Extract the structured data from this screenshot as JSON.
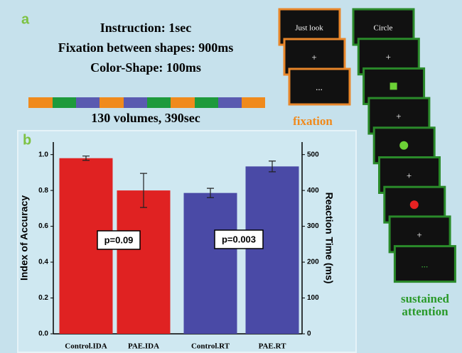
{
  "figure": {
    "panel_a": "a",
    "panel_b": "b",
    "instructions": [
      "Instruction: 1sec",
      "Fixation between shapes: 900ms",
      "Color-Shape: 100ms"
    ],
    "timeline_label": "130 volumes, 390sec",
    "fixation_texts": [
      "Just look",
      "+",
      "..."
    ],
    "fixation_label": "fixation",
    "attention_texts": [
      "Circle",
      "+",
      "+",
      "+",
      "+",
      "..."
    ],
    "attention_label": [
      "sustained",
      "attention"
    ]
  },
  "chart_data": {
    "type": "bar",
    "categories": [
      "Control.IDA",
      "PAE.IDA",
      "Control.RT",
      "PAE.RT"
    ],
    "ylabel": "Index of Accuracy",
    "y2label": "Reaction Time (ms)",
    "ylim": [
      0,
      1.07
    ],
    "yticks": [
      {
        "value": 0,
        "label": "0.0"
      },
      0.2,
      0.4,
      0.6,
      0.8,
      {
        "value": 1,
        "label": "1.0"
      }
    ],
    "y2lim": [
      0,
      535
    ],
    "y2ticks": [
      0,
      100,
      200,
      300,
      400,
      500
    ],
    "series": [
      {
        "color": "#e02222",
        "values": [
          0.98,
          0.8,
          null,
          null
        ],
        "errors": [
          0.012,
          0.095,
          null,
          null
        ]
      },
      {
        "color": "#4a4aa6",
        "axis": "y2",
        "values": [
          null,
          null,
          393,
          467
        ],
        "errors": [
          null,
          null,
          13,
          15
        ]
      }
    ],
    "annotations": [
      "p=0.09",
      "p=0.003"
    ]
  }
}
